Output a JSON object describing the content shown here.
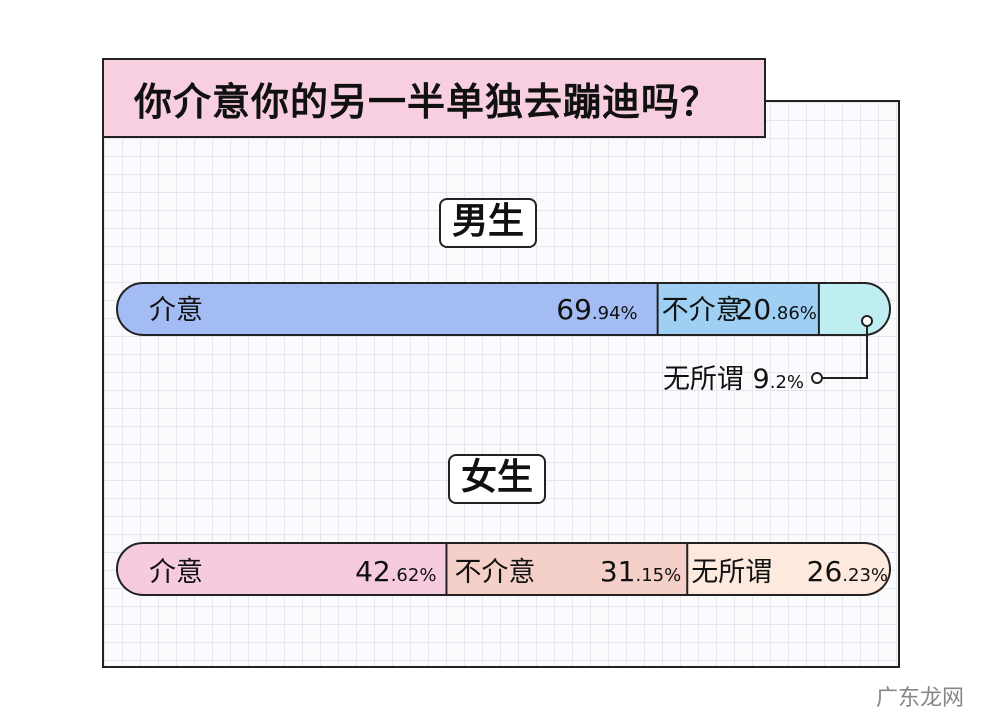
{
  "header": {
    "title": "你介意你的另一半单独去蹦迪吗？"
  },
  "colors": {
    "male_1": "#a3bcf4",
    "male_2": "#9fd0f4",
    "male_3": "#bfeef2",
    "female_1": "#f6cbe0",
    "female_2": "#f4d0c8",
    "female_3": "#fde9de"
  },
  "chart_data": [
    {
      "type": "bar",
      "stacked": true,
      "orientation": "horizontal",
      "title": "男生",
      "categories": [
        "介意",
        "不介意",
        "无所谓"
      ],
      "values": [
        69.94,
        20.86,
        9.2
      ],
      "labels": [
        "69.94%",
        "20.86%",
        "9.2%"
      ],
      "unit": "%"
    },
    {
      "type": "bar",
      "stacked": true,
      "orientation": "horizontal",
      "title": "女生",
      "categories": [
        "介意",
        "不介意",
        "无所谓"
      ],
      "values": [
        42.62,
        31.15,
        26.23
      ],
      "labels": [
        "42.62%",
        "31.15%",
        "26.23%"
      ],
      "unit": "%"
    }
  ],
  "watermark": "广东龙网"
}
